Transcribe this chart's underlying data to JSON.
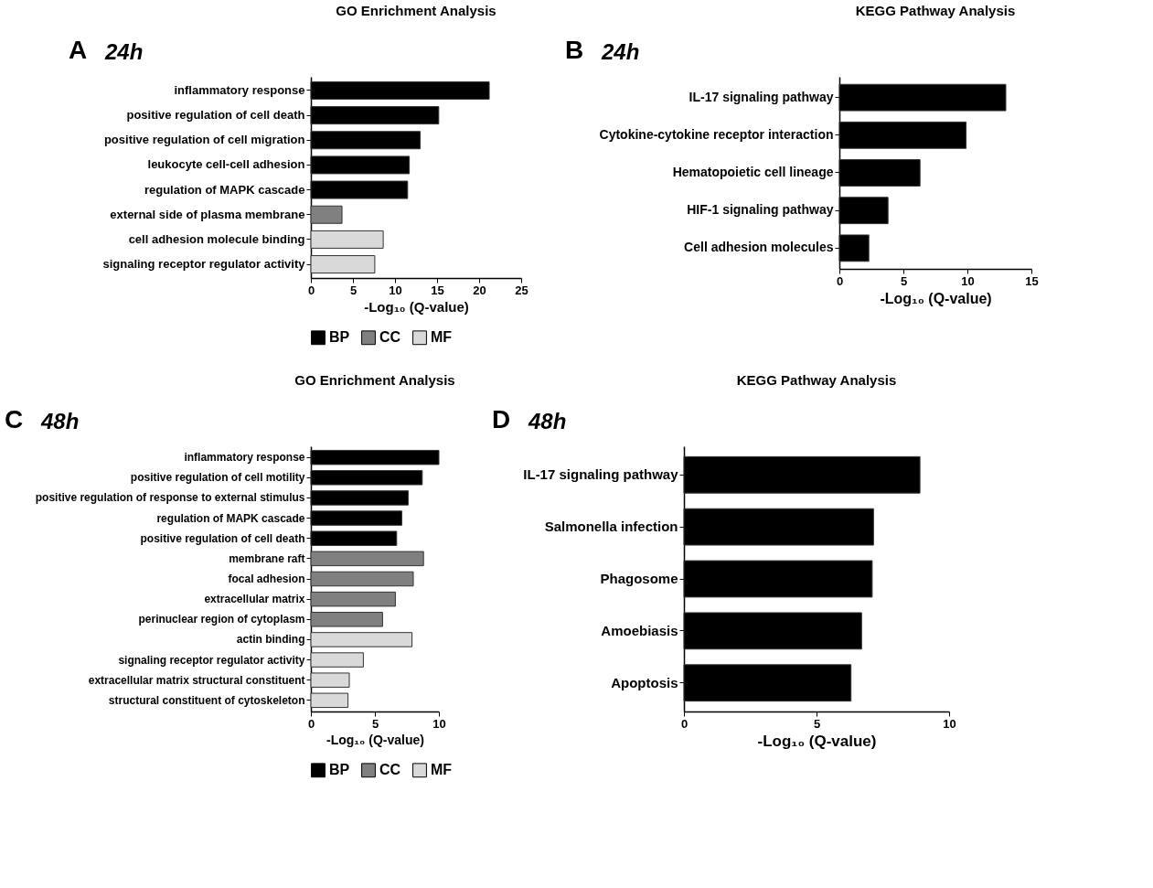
{
  "chart_data": [
    {
      "type": "bar",
      "orientation": "horizontal",
      "title": "GO Enrichment Analysis",
      "annotations": [
        "A",
        "24h"
      ],
      "xlabel": "-Log₁₀ (Q-value)",
      "categories": [
        "inflammatory response",
        "positive regulation of cell death",
        "positive regulation of cell migration",
        "leukocyte cell-cell adhesion",
        "regulation of MAPK cascade",
        "external side of plasma membrane",
        "cell adhesion molecule binding",
        "signaling receptor regulator activity"
      ],
      "series": [
        {
          "name": "BP",
          "color": "#000000",
          "values": [
            21.2,
            15.2,
            13.0,
            11.7,
            11.5,
            null,
            null,
            null
          ]
        },
        {
          "name": "CC",
          "color": "#808080",
          "values": [
            null,
            null,
            null,
            null,
            null,
            3.7,
            null,
            null
          ]
        },
        {
          "name": "MF",
          "color": "#d9d9d9",
          "values": [
            null,
            null,
            null,
            null,
            null,
            null,
            8.6,
            7.6
          ]
        }
      ],
      "xlim": [
        0,
        25
      ],
      "xticks": [
        0,
        5,
        10,
        15,
        20,
        25
      ],
      "legend": "bottom"
    },
    {
      "type": "bar",
      "orientation": "horizontal",
      "title": "KEGG Pathway Analysis",
      "annotations": [
        "B",
        "24h"
      ],
      "xlabel": "-Log₁₀ (Q-value)",
      "categories": [
        "IL-17 signaling pathway",
        "Cytokine-cytokine receptor interaction",
        "Hematopoietic cell lineage",
        "HIF-1 signaling pathway",
        "Cell adhesion molecules"
      ],
      "color": "#000000",
      "values": [
        13.0,
        9.9,
        6.3,
        3.8,
        2.3
      ],
      "xlim": [
        0,
        15
      ],
      "xticks": [
        0,
        5,
        10,
        15
      ]
    },
    {
      "type": "bar",
      "orientation": "horizontal",
      "title": "GO Enrichment Analysis",
      "annotations": [
        "C",
        "48h"
      ],
      "xlabel": "-Log₁₀ (Q-value)",
      "categories": [
        "inflammatory response",
        "positive regulation of cell motility",
        "positive regulation of response to external stimulus",
        "regulation of MAPK cascade",
        "positive regulation of cell death",
        "membrane raft",
        "focal adhesion",
        "extracellular matrix",
        "perinuclear region of cytoplasm",
        "actin binding",
        "signaling receptor regulator activity",
        "extracellular matrix structural constituent",
        "structural constituent of cytoskeleton"
      ],
      "series": [
        {
          "name": "BP",
          "color": "#000000",
          "values": [
            10.0,
            8.7,
            7.6,
            7.1,
            6.7,
            null,
            null,
            null,
            null,
            null,
            null,
            null,
            null
          ]
        },
        {
          "name": "CC",
          "color": "#808080",
          "values": [
            null,
            null,
            null,
            null,
            null,
            8.8,
            8.0,
            6.6,
            5.6,
            null,
            null,
            null,
            null
          ]
        },
        {
          "name": "MF",
          "color": "#d9d9d9",
          "values": [
            null,
            null,
            null,
            null,
            null,
            null,
            null,
            null,
            null,
            7.9,
            4.1,
            3.0,
            2.9
          ]
        }
      ],
      "xlim": [
        0,
        10
      ],
      "xticks": [
        0,
        5,
        10
      ],
      "legend": "bottom"
    },
    {
      "type": "bar",
      "orientation": "horizontal",
      "title": "KEGG Pathway Analysis",
      "annotations": [
        "D",
        "48h"
      ],
      "xlabel": "-Log₁₀ (Q-value)",
      "categories": [
        "IL-17 signaling pathway",
        "Salmonella infection",
        "Phagosome",
        "Amoebiasis",
        "Apoptosis"
      ],
      "color": "#000000",
      "values": [
        8.9,
        7.15,
        7.1,
        6.7,
        6.3
      ],
      "xlim": [
        0,
        10
      ],
      "xticks": [
        0,
        5,
        10
      ]
    }
  ]
}
